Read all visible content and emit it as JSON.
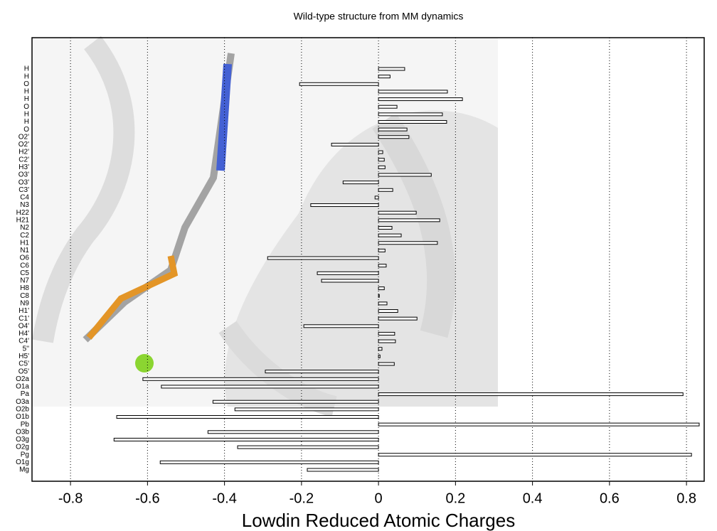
{
  "chart_data": {
    "type": "barh",
    "title": "Wild-type structure from MM dynamics",
    "xlabel": "Lowdin Reduced Atomic Charges",
    "categories": [
      "H",
      "H",
      "O",
      "H",
      "H",
      "O",
      "H",
      "H",
      "O",
      "O2'",
      "O2'",
      "H2'",
      "C2'",
      "H3'",
      "O3'",
      "O3'",
      "C3'",
      "C4",
      "N3",
      "H22",
      "H21",
      "N2",
      "C2",
      "H1",
      "N1",
      "O6",
      "C6",
      "C5",
      "N7",
      "H8",
      "C8",
      "N9",
      "H1'",
      "C1'",
      "O4'",
      "H4'",
      "C4'",
      "5''",
      "H5'",
      "C5'",
      "O5'",
      "O2a",
      "O1a",
      "Pa",
      "O3a",
      "O2b",
      "O1b",
      "Pb",
      "O3b",
      "O3g",
      "O2g",
      "Pg",
      "O1g",
      "Mg"
    ],
    "values": [
      0.068,
      0.03,
      -0.205,
      0.179,
      0.218,
      0.048,
      0.166,
      0.177,
      0.074,
      0.079,
      -0.122,
      0.011,
      0.015,
      0.017,
      0.137,
      -0.092,
      0.037,
      -0.009,
      -0.176,
      0.098,
      0.159,
      0.035,
      0.059,
      0.153,
      0.017,
      -0.288,
      0.02,
      -0.159,
      -0.148,
      0.015,
      0.002,
      0.022,
      0.05,
      0.1,
      -0.194,
      0.042,
      0.044,
      0.009,
      0.004,
      0.041,
      -0.294,
      -0.612,
      -0.564,
      0.791,
      -0.43,
      -0.373,
      -0.68,
      0.833,
      -0.443,
      -0.687,
      -0.366,
      0.813,
      -0.567,
      -0.185
    ],
    "color": "#ffffff",
    "xlim": [
      -0.9,
      0.846
    ],
    "xticks": [
      -0.8,
      -0.6,
      -0.4,
      -0.2,
      0,
      0.2,
      0.4,
      0.6,
      0.8
    ],
    "grid": true
  }
}
